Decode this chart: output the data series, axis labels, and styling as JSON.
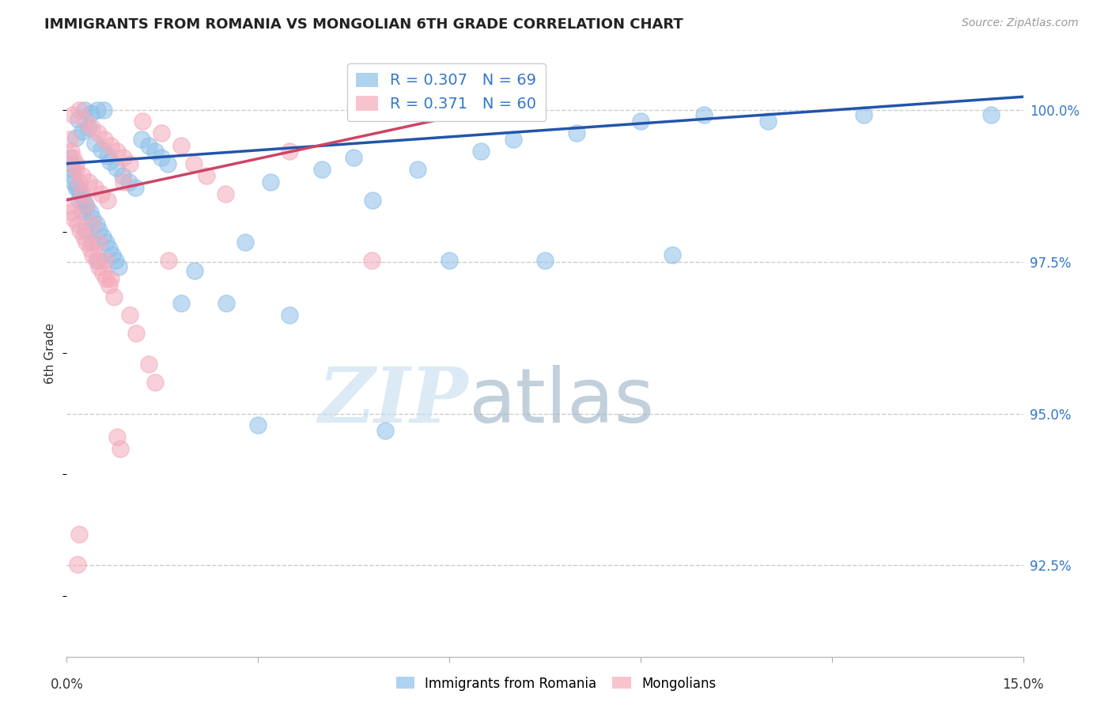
{
  "title": "IMMIGRANTS FROM ROMANIA VS MONGOLIAN 6TH GRADE CORRELATION CHART",
  "source": "Source: ZipAtlas.com",
  "ylabel": "6th Grade",
  "yaxis_labels": [
    "92.5%",
    "95.0%",
    "97.5%",
    "100.0%"
  ],
  "yaxis_values": [
    92.5,
    95.0,
    97.5,
    100.0
  ],
  "xmin": 0.0,
  "xmax": 15.0,
  "ymin": 91.0,
  "ymax": 101.0,
  "legend_blue_r": "R = 0.307",
  "legend_blue_n": "N = 69",
  "legend_pink_r": "R = 0.371",
  "legend_pink_n": "N = 60",
  "watermark_zip": "ZIP",
  "watermark_atlas": "atlas",
  "blue_color": "#8ec0e8",
  "pink_color": "#f4aabb",
  "blue_line_color": "#2255aa",
  "pink_line_color": "#cc4466",
  "blue_scatter": [
    [
      0.18,
      99.85
    ],
    [
      0.28,
      100.0
    ],
    [
      0.38,
      99.95
    ],
    [
      0.48,
      100.0
    ],
    [
      0.58,
      100.0
    ],
    [
      0.14,
      99.55
    ],
    [
      0.24,
      99.65
    ],
    [
      0.34,
      99.72
    ],
    [
      0.44,
      99.45
    ],
    [
      0.54,
      99.35
    ],
    [
      0.64,
      99.25
    ],
    [
      0.68,
      99.15
    ],
    [
      0.78,
      99.05
    ],
    [
      0.88,
      98.92
    ],
    [
      0.98,
      98.82
    ],
    [
      1.08,
      98.72
    ],
    [
      1.18,
      99.52
    ],
    [
      1.28,
      99.42
    ],
    [
      1.38,
      99.32
    ],
    [
      1.48,
      99.22
    ],
    [
      1.58,
      99.12
    ],
    [
      0.09,
      99.02
    ],
    [
      0.11,
      98.82
    ],
    [
      0.17,
      98.72
    ],
    [
      0.21,
      98.62
    ],
    [
      0.27,
      98.52
    ],
    [
      0.31,
      98.42
    ],
    [
      0.37,
      98.32
    ],
    [
      0.41,
      98.22
    ],
    [
      0.47,
      98.12
    ],
    [
      0.51,
      98.02
    ],
    [
      0.57,
      97.92
    ],
    [
      0.61,
      97.82
    ],
    [
      0.67,
      97.72
    ],
    [
      0.71,
      97.62
    ],
    [
      0.77,
      97.52
    ],
    [
      0.81,
      97.42
    ],
    [
      0.04,
      99.22
    ],
    [
      0.07,
      99.12
    ],
    [
      0.1,
      98.92
    ],
    [
      0.14,
      98.72
    ],
    [
      0.19,
      98.52
    ],
    [
      0.24,
      98.32
    ],
    [
      0.29,
      98.02
    ],
    [
      0.39,
      97.82
    ],
    [
      0.49,
      97.52
    ],
    [
      2.0,
      97.35
    ],
    [
      2.5,
      96.82
    ],
    [
      3.5,
      96.62
    ],
    [
      5.0,
      94.72
    ],
    [
      4.5,
      99.22
    ],
    [
      5.5,
      99.02
    ],
    [
      6.5,
      99.32
    ],
    [
      7.0,
      99.52
    ],
    [
      8.0,
      99.62
    ],
    [
      9.0,
      99.82
    ],
    [
      10.0,
      99.92
    ],
    [
      11.0,
      99.82
    ],
    [
      12.5,
      99.92
    ],
    [
      14.5,
      99.92
    ],
    [
      2.8,
      97.82
    ],
    [
      3.2,
      98.82
    ],
    [
      4.0,
      99.02
    ],
    [
      4.8,
      98.52
    ],
    [
      6.0,
      97.52
    ],
    [
      7.5,
      97.52
    ],
    [
      9.5,
      97.62
    ],
    [
      1.8,
      96.82
    ],
    [
      3.0,
      94.82
    ]
  ],
  "pink_scatter": [
    [
      0.09,
      99.92
    ],
    [
      0.19,
      100.0
    ],
    [
      0.29,
      99.82
    ],
    [
      0.39,
      99.72
    ],
    [
      0.49,
      99.62
    ],
    [
      0.59,
      99.52
    ],
    [
      0.69,
      99.42
    ],
    [
      0.79,
      99.32
    ],
    [
      0.89,
      99.22
    ],
    [
      0.99,
      99.12
    ],
    [
      0.14,
      99.02
    ],
    [
      0.24,
      98.92
    ],
    [
      0.34,
      98.82
    ],
    [
      0.44,
      98.72
    ],
    [
      0.54,
      98.62
    ],
    [
      0.64,
      98.52
    ],
    [
      0.04,
      98.42
    ],
    [
      0.07,
      98.32
    ],
    [
      0.11,
      98.22
    ],
    [
      0.17,
      98.12
    ],
    [
      0.21,
      98.02
    ],
    [
      0.27,
      97.92
    ],
    [
      0.31,
      97.82
    ],
    [
      0.37,
      97.72
    ],
    [
      0.41,
      97.62
    ],
    [
      0.47,
      97.52
    ],
    [
      0.51,
      97.42
    ],
    [
      0.57,
      97.32
    ],
    [
      0.61,
      97.22
    ],
    [
      0.67,
      97.12
    ],
    [
      0.04,
      99.52
    ],
    [
      0.07,
      99.32
    ],
    [
      0.09,
      99.22
    ],
    [
      0.14,
      99.12
    ],
    [
      0.19,
      98.82
    ],
    [
      0.24,
      98.62
    ],
    [
      0.29,
      98.42
    ],
    [
      0.39,
      98.12
    ],
    [
      0.49,
      97.82
    ],
    [
      0.59,
      97.52
    ],
    [
      1.19,
      99.82
    ],
    [
      1.49,
      99.62
    ],
    [
      1.79,
      99.42
    ],
    [
      1.99,
      99.12
    ],
    [
      2.19,
      98.92
    ],
    [
      2.49,
      98.62
    ],
    [
      0.69,
      97.22
    ],
    [
      0.74,
      96.92
    ],
    [
      0.99,
      96.62
    ],
    [
      1.09,
      96.32
    ],
    [
      1.29,
      95.82
    ],
    [
      1.39,
      95.52
    ],
    [
      0.79,
      94.62
    ],
    [
      0.84,
      94.42
    ],
    [
      1.59,
      97.52
    ],
    [
      4.79,
      97.52
    ],
    [
      0.19,
      93.02
    ],
    [
      0.17,
      92.52
    ],
    [
      3.49,
      99.32
    ],
    [
      0.89,
      98.82
    ]
  ],
  "blue_line": [
    [
      0.0,
      99.12
    ],
    [
      15.0,
      100.22
    ]
  ],
  "pink_line": [
    [
      0.0,
      98.52
    ],
    [
      7.5,
      100.22
    ]
  ]
}
